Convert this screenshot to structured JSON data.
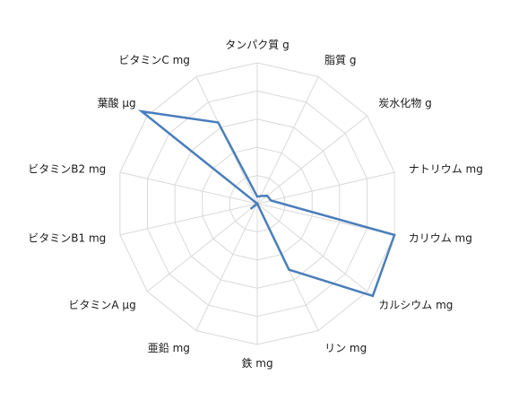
{
  "chart_data": {
    "type": "radar",
    "categories": [
      "タンパク質 g",
      "脂質 g",
      "炭水化物 g",
      "ナトリウム mg",
      "カリウム mg",
      "カルシウム mg",
      "リン mg",
      "鉄 mg",
      "亜鉛 mg",
      "ビタミンA μg",
      "ビタミンB1 mg",
      "ビタミンB2 mg",
      "葉酸 μg",
      "ビタミンC mg"
    ],
    "series": [
      {
        "values": [
          0.05,
          0.06,
          0.09,
          0.1,
          1.0,
          1.05,
          0.52,
          0.0,
          0.0,
          0.06,
          0.0,
          0.0,
          1.05,
          0.64
        ]
      }
    ],
    "rmax": 1.0,
    "gridlines": 5,
    "grid": true,
    "legend": "none",
    "colors": {
      "series": "#4a7ebb",
      "grid": "#d9d9d9"
    }
  }
}
